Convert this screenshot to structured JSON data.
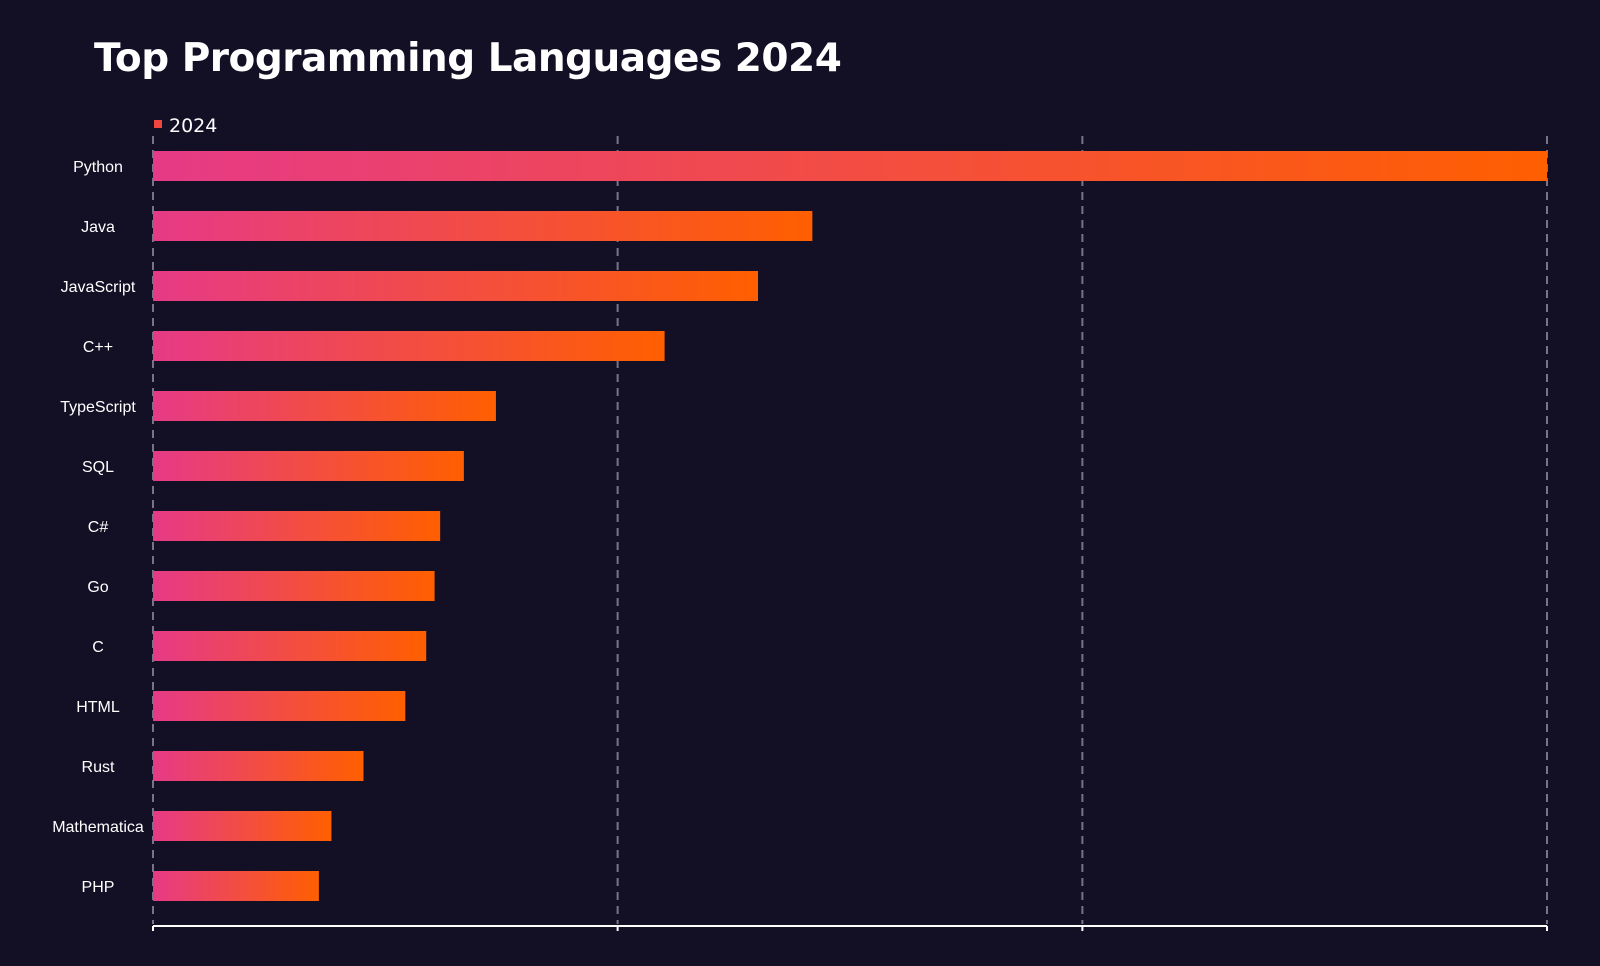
{
  "chart_data": {
    "type": "bar",
    "orientation": "horizontal",
    "title": "Top Programming Languages 2024",
    "xlabel": "",
    "ylabel": "",
    "categories": [
      "Python",
      "Java",
      "JavaScript",
      "C++",
      "TypeScript",
      "SQL",
      "C#",
      "Go",
      "C",
      "HTML",
      "Rust",
      "Mathematica",
      "PHP"
    ],
    "series": [
      {
        "name": "2024",
        "values": [
          100,
          47.3,
          43.4,
          36.7,
          24.6,
          22.3,
          20.6,
          20.2,
          19.6,
          18.1,
          15.1,
          12.8,
          11.9
        ]
      }
    ],
    "xlim": [
      0,
      100
    ],
    "x_tick_values": [
      0,
      33.33,
      66.67,
      100
    ],
    "x_tick_labels_visible": false,
    "grid": {
      "x": true,
      "style": "dashed"
    },
    "legend": {
      "position": "top-left"
    },
    "colors": {
      "background": "#130f24",
      "bar_gradient_start": "#e63a86",
      "bar_gradient_end": "#ff5f00",
      "legend_swatch": "#f0463f",
      "grid": "#77748a",
      "axis": "#ffffff",
      "text": "#ffffff"
    }
  }
}
